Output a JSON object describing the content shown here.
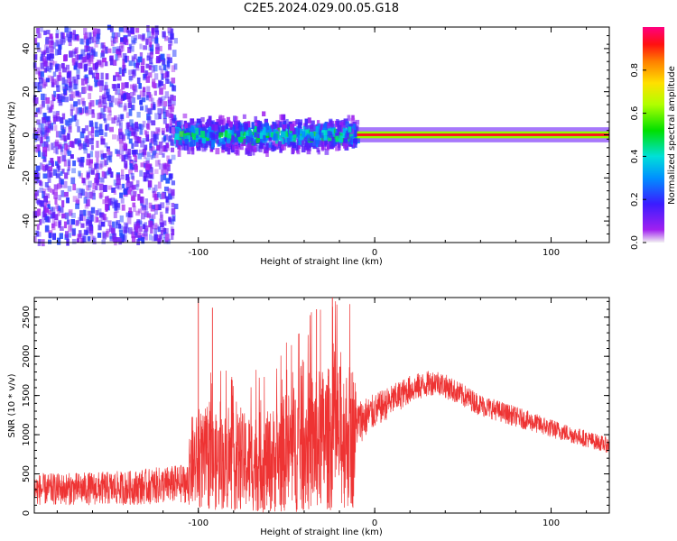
{
  "title": "C2E5.2024.029.00.05.G18",
  "colorbar": {
    "label": "Normalized spectral amplitude",
    "ticks": [
      "0.0",
      "0.2",
      "0.4",
      "0.6",
      "0.8"
    ],
    "tick_values": [
      0.0,
      0.2,
      0.4,
      0.6,
      0.8
    ],
    "range": [
      0,
      1
    ]
  },
  "chart_data": [
    {
      "type": "heatmap",
      "xlabel": "Height of straight line (km)",
      "ylabel": "Frequency (Hz)",
      "xlim": [
        -193,
        133
      ],
      "ylim": [
        -50,
        50
      ],
      "xticks": [
        -100,
        0,
        100
      ],
      "xtick_labels": [
        "-100",
        "0",
        "100"
      ],
      "yticks": [
        -40,
        -20,
        0,
        20,
        40
      ],
      "ytick_labels": [
        "-40",
        "-20",
        "0",
        "20",
        "40"
      ],
      "regions": [
        {
          "x": [
            -193,
            -113
          ],
          "freq_spread": 50,
          "amplitude": 0.3,
          "pattern": "broadband speckle"
        },
        {
          "x": [
            -113,
            -10
          ],
          "freq_spread": 10,
          "amplitude": 0.35,
          "pattern": "band around 0 Hz"
        },
        {
          "x": [
            -10,
            133
          ],
          "freq_spread": 3,
          "amplitude": 0.9,
          "pattern": "narrow carrier line at 0 Hz"
        }
      ]
    },
    {
      "type": "line",
      "xlabel": "Height of straight line (km)",
      "ylabel": "SNR (10 * v/v)",
      "xlim": [
        -193,
        133
      ],
      "ylim": [
        0,
        2750
      ],
      "xticks": [
        -100,
        0,
        100
      ],
      "xtick_labels": [
        "-100",
        "0",
        "100"
      ],
      "yticks": [
        0,
        500,
        1000,
        1500,
        2000,
        2500
      ],
      "ytick_labels": [
        "0",
        "500",
        "1000",
        "1500",
        "2000",
        "2500"
      ],
      "color": "#ee3333",
      "envelope": [
        {
          "x": -193,
          "mean": 300,
          "spread": 200
        },
        {
          "x": -140,
          "mean": 320,
          "spread": 220
        },
        {
          "x": -106,
          "mean": 380,
          "spread": 250
        },
        {
          "x": -104,
          "mean": 650,
          "spread": 600
        },
        {
          "x": -60,
          "mean": 650,
          "spread": 650
        },
        {
          "x": -40,
          "mean": 900,
          "spread": 900
        },
        {
          "x": -12,
          "mean": 1000,
          "spread": 950
        },
        {
          "x": -10,
          "mean": 1150,
          "spread": 300
        },
        {
          "x": 0,
          "mean": 1300,
          "spread": 220
        },
        {
          "x": 20,
          "mean": 1580,
          "spread": 180
        },
        {
          "x": 35,
          "mean": 1680,
          "spread": 160
        },
        {
          "x": 60,
          "mean": 1380,
          "spread": 140
        },
        {
          "x": 100,
          "mean": 1080,
          "spread": 120
        },
        {
          "x": 133,
          "mean": 860,
          "spread": 100
        }
      ],
      "peaks": [
        {
          "x": -100,
          "y": 2750
        },
        {
          "x": -92,
          "y": 2620
        },
        {
          "x": -33,
          "y": 2600
        },
        {
          "x": -24,
          "y": 2750
        }
      ]
    }
  ]
}
